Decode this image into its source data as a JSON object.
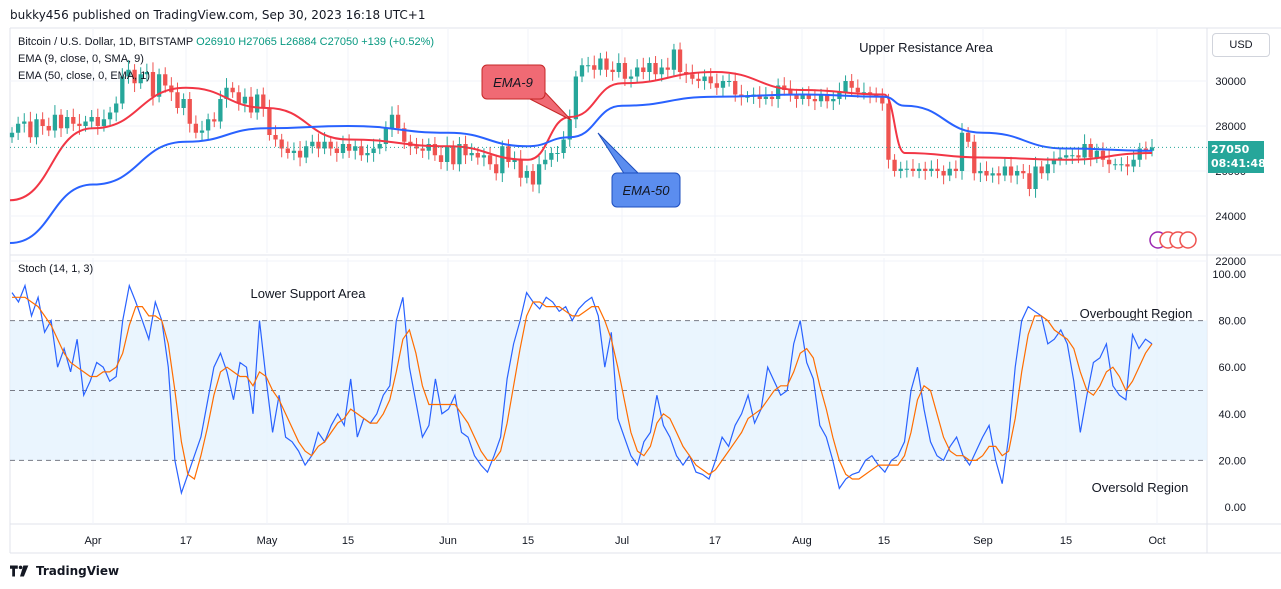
{
  "header": {
    "publisher_line": "bukky456 published on TradingView.com, Sep 30, 2023 16:18 UTC+1"
  },
  "legend": {
    "symbol": "Bitcoin / U.S. Dollar, 1D, BITSTAMP",
    "ohlc": "O26910  H27065  L26884  C27050  +139 (+0.52%)",
    "ema9": "EMA (9, close, 0, SMA, 9)",
    "ema50": "EMA (50, close, 0, EMA, 1)",
    "stoch": "Stoch (14, 1, 3)"
  },
  "annotations": {
    "upper_resistance": "Upper Resistance Area",
    "lower_support": "Lower Support Area",
    "ema9_callout": "EMA-9",
    "ema50_callout": "EMA-50",
    "overbought": "Overbought Region",
    "oversold": "Oversold Region"
  },
  "scale": {
    "currency_button": "USD"
  },
  "last_price": {
    "price": "27050",
    "countdown": "08:41:48"
  },
  "footer": {
    "brand": "TradingView"
  },
  "colors": {
    "up": "#26a69a",
    "down": "#ef5350",
    "ema9": "#f23645",
    "ema50": "#2962ff",
    "stoch_k": "#2962ff",
    "stoch_d": "#ff6d00",
    "band": "#e3f2fd"
  },
  "chart_data": [
    {
      "type": "candlestick",
      "title": "Bitcoin / U.S. Dollar, 1D, BITSTAMP",
      "x_tick_labels": [
        "Apr",
        "17",
        "May",
        "15",
        "Jun",
        "15",
        "Jul",
        "17",
        "Aug",
        "15",
        "Sep",
        "15",
        "Oct"
      ],
      "y_tick_labels": [
        "22000",
        "24000",
        "26000",
        "28000",
        "30000"
      ],
      "ylim": [
        22000,
        32000
      ],
      "grid": true,
      "candles_close": [
        27700,
        28100,
        28200,
        27500,
        28300,
        28000,
        27800,
        28500,
        27900,
        28400,
        28100,
        28000,
        28200,
        28400,
        28000,
        28300,
        28600,
        29000,
        30200,
        30500,
        29900,
        30300,
        30400,
        29300,
        30300,
        29800,
        29500,
        28800,
        29200,
        28100,
        27700,
        27800,
        28300,
        28200,
        29200,
        29700,
        29500,
        29000,
        29300,
        28600,
        29400,
        28800,
        27600,
        27400,
        27000,
        26800,
        26900,
        26600,
        27100,
        27300,
        27000,
        27300,
        27000,
        26800,
        27200,
        26900,
        27100,
        26700,
        26800,
        27000,
        27200,
        27900,
        28500,
        27900,
        27300,
        27100,
        27000,
        26900,
        27200,
        26700,
        26400,
        27100,
        26300,
        27200,
        26700,
        26800,
        26600,
        26700,
        26300,
        25900,
        27100,
        26400,
        26500,
        25700,
        26000,
        25400,
        26300,
        26500,
        26800,
        26800,
        27400,
        28300,
        30200,
        30700,
        30700,
        30500,
        31000,
        30500,
        30400,
        30800,
        30100,
        30200,
        30600,
        30400,
        30800,
        30300,
        30600,
        30500,
        31400,
        30400,
        30300,
        30100,
        30000,
        30200,
        29900,
        29700,
        30000,
        30000,
        29400,
        29300,
        29300,
        29400,
        29200,
        29300,
        29200,
        29800,
        29600,
        29400,
        29200,
        29400,
        29200,
        29100,
        29400,
        29100,
        29200,
        29500,
        30000,
        29700,
        29500,
        29500,
        29400,
        29300,
        29000,
        26500,
        26000,
        26100,
        26100,
        26000,
        26100,
        26000,
        26100,
        26000,
        25800,
        26100,
        26000,
        27700,
        27300,
        25900,
        26000,
        25800,
        25900,
        25800,
        26200,
        25800,
        26000,
        25900,
        25200,
        26200,
        25900,
        26300,
        26500,
        26600,
        26700,
        26700,
        26600,
        27200,
        26600,
        26900,
        26500,
        26300,
        26300,
        26300,
        26200,
        26500,
        27000,
        26900,
        27050
      ],
      "series": [
        {
          "name": "EMA (9, close, 0, SMA, 9)",
          "color": "#f23645",
          "x": [
            "Mar 20",
            "Apr 1",
            "Apr 17",
            "May 1",
            "May 15",
            "Jun 1",
            "Jun 15",
            "Jun 22",
            "Jul 1",
            "Jul 17",
            "Aug 1",
            "Aug 15",
            "Aug 20",
            "Sep 1",
            "Sep 15",
            "Sep 30"
          ],
          "values": [
            24700,
            27900,
            29700,
            28800,
            27400,
            27100,
            26500,
            28400,
            29900,
            30400,
            29600,
            29400,
            26800,
            26600,
            26500,
            26800
          ]
        },
        {
          "name": "EMA (50, close, 0, EMA, 1)",
          "color": "#2962ff",
          "x": [
            "Mar 20",
            "Apr 1",
            "Apr 17",
            "May 1",
            "May 15",
            "Jun 1",
            "Jun 15",
            "Jun 22",
            "Jul 1",
            "Jul 17",
            "Aug 1",
            "Aug 15",
            "Aug 20",
            "Sep 1",
            "Sep 15",
            "Sep 30"
          ],
          "values": [
            22800,
            25400,
            27300,
            27900,
            28000,
            27700,
            27100,
            27500,
            28900,
            29300,
            29400,
            29300,
            28900,
            27700,
            27000,
            26900
          ]
        }
      ]
    },
    {
      "type": "line",
      "title": "Stoch (14, 1, 3)",
      "y_tick_labels": [
        "0.00",
        "20.00",
        "40.00",
        "60.00",
        "80.00",
        "100.00"
      ],
      "ylim": [
        0,
        100
      ],
      "bands": [
        20,
        50,
        80
      ],
      "series": [
        {
          "name": "%K",
          "color": "#2962ff",
          "values": [
            92,
            88,
            95,
            82,
            90,
            75,
            80,
            60,
            68,
            58,
            72,
            48,
            54,
            62,
            60,
            54,
            56,
            80,
            95,
            88,
            80,
            72,
            88,
            80,
            60,
            20,
            6,
            14,
            22,
            30,
            45,
            60,
            66,
            58,
            46,
            62,
            60,
            40,
            80,
            55,
            32,
            48,
            30,
            28,
            24,
            18,
            22,
            32,
            28,
            35,
            40,
            35,
            55,
            30,
            38,
            36,
            40,
            48,
            52,
            80,
            90,
            60,
            45,
            30,
            35,
            55,
            40,
            42,
            48,
            32,
            30,
            22,
            18,
            15,
            22,
            30,
            55,
            70,
            80,
            92,
            88,
            85,
            90,
            88,
            84,
            86,
            80,
            85,
            88,
            90,
            82,
            60,
            75,
            38,
            30,
            22,
            18,
            28,
            32,
            48,
            35,
            30,
            22,
            18,
            22,
            15,
            14,
            12,
            20,
            30,
            26,
            35,
            40,
            48,
            36,
            42,
            60,
            54,
            48,
            50,
            70,
            80,
            62,
            55,
            35,
            30,
            20,
            8,
            12,
            14,
            15,
            20,
            22,
            18,
            15,
            20,
            22,
            28,
            50,
            60,
            42,
            28,
            22,
            20,
            26,
            30,
            22,
            18,
            24,
            30,
            35,
            20,
            10,
            30,
            60,
            80,
            86,
            84,
            82,
            70,
            72,
            76,
            70,
            54,
            32,
            48,
            62,
            64,
            70,
            52,
            48,
            46,
            74,
            68,
            72,
            70
          ],
          "note": "Smoothed fast stochastic line drawn in blue"
        },
        {
          "name": "%D",
          "color": "#ff6d00",
          "values": [
            90,
            90,
            90,
            88,
            86,
            82,
            78,
            72,
            66,
            62,
            60,
            58,
            56,
            56,
            58,
            58,
            60,
            66,
            78,
            86,
            86,
            82,
            82,
            80,
            70,
            50,
            28,
            14,
            12,
            22,
            34,
            48,
            58,
            60,
            58,
            56,
            56,
            52,
            58,
            56,
            50,
            46,
            40,
            34,
            28,
            24,
            22,
            26,
            28,
            32,
            36,
            38,
            42,
            40,
            38,
            36,
            36,
            40,
            46,
            58,
            72,
            76,
            66,
            52,
            44,
            44,
            44,
            44,
            44,
            40,
            36,
            30,
            24,
            20,
            20,
            24,
            36,
            52,
            68,
            82,
            88,
            88,
            86,
            86,
            86,
            84,
            82,
            82,
            84,
            86,
            86,
            80,
            72,
            60,
            46,
            32,
            24,
            22,
            26,
            36,
            40,
            38,
            32,
            26,
            22,
            18,
            16,
            14,
            16,
            20,
            24,
            28,
            32,
            38,
            40,
            42,
            46,
            50,
            52,
            52,
            58,
            66,
            68,
            64,
            52,
            42,
            30,
            20,
            14,
            12,
            12,
            14,
            16,
            18,
            18,
            18,
            18,
            22,
            32,
            46,
            52,
            50,
            40,
            30,
            24,
            22,
            22,
            20,
            20,
            22,
            26,
            26,
            22,
            24,
            38,
            58,
            74,
            82,
            82,
            80,
            76,
            74,
            72,
            68,
            58,
            50,
            48,
            52,
            58,
            60,
            56,
            50,
            54,
            60,
            66,
            70
          ]
        }
      ],
      "x_tick_labels": [
        "Apr",
        "17",
        "May",
        "15",
        "Jun",
        "15",
        "Jul",
        "17",
        "Aug",
        "15",
        "Sep",
        "15",
        "Oct"
      ]
    }
  ]
}
